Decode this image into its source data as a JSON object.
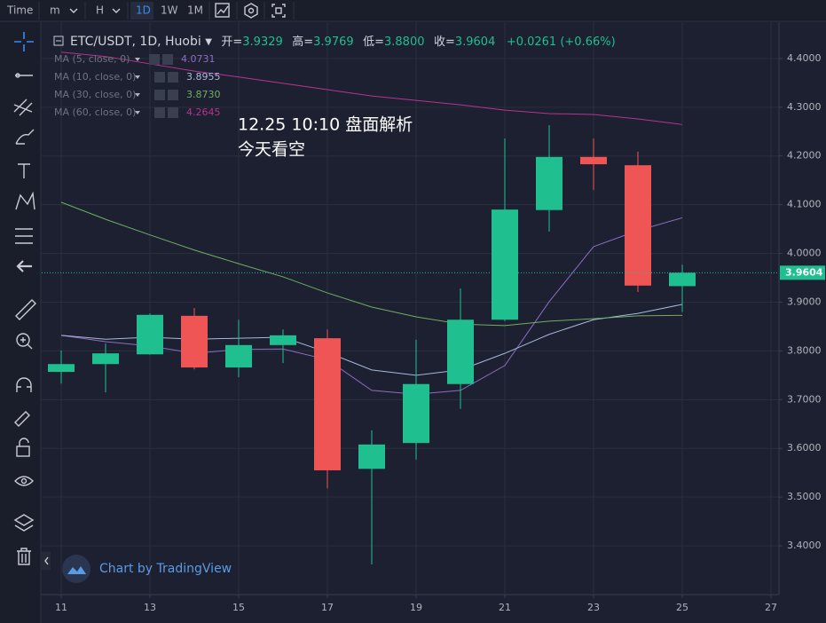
{
  "toolbar": {
    "time": "Time",
    "intervals": [
      "m",
      "H",
      "1D",
      "1W",
      "1M"
    ]
  },
  "watermark": "Chart by TradingView",
  "chart_data": {
    "type": "candlestick",
    "title": "ETC/USDT, 1D, Huobi",
    "ohlc_labels": [
      "开=",
      "高=",
      "低=",
      "收="
    ],
    "ohlc_value_labels": [
      "3.9329",
      "3.9769",
      "3.8800",
      "3.9604"
    ],
    "change_label": "+0.0261 (+0.66%)",
    "annotations": [
      "12.25 10:10 盘面解析",
      "今天看空"
    ],
    "up_color": "#1fbf8f",
    "down_color": "#f05555",
    "x": [
      11,
      12,
      13,
      14,
      15,
      16,
      17,
      18,
      19,
      20,
      21,
      22,
      23,
      24,
      25
    ],
    "open": [
      3.757,
      3.773,
      3.793,
      3.872,
      3.766,
      3.812,
      3.826,
      3.558,
      3.611,
      3.732,
      3.864,
      4.089,
      4.198,
      4.181,
      3.9329
    ],
    "high": [
      3.801,
      3.815,
      3.877,
      3.888,
      3.864,
      3.844,
      3.844,
      3.637,
      3.823,
      3.928,
      4.236,
      4.263,
      4.236,
      4.209,
      3.9769
    ],
    "low": [
      3.733,
      3.715,
      3.792,
      3.762,
      3.746,
      3.775,
      3.518,
      3.362,
      3.577,
      3.681,
      3.861,
      4.045,
      4.13,
      3.921,
      3.88
    ],
    "close": [
      3.773,
      3.795,
      3.874,
      3.766,
      3.812,
      3.832,
      3.555,
      3.608,
      3.732,
      3.864,
      4.09,
      4.198,
      4.183,
      3.934,
      3.9604
    ],
    "series": [
      {
        "name": "MA (5, close, 0)",
        "color": "#8e6cc4",
        "value_label": "4.0731",
        "values": [
          3.832,
          3.819,
          3.81,
          3.795,
          3.803,
          3.804,
          3.782,
          3.719,
          3.711,
          3.719,
          3.77,
          3.901,
          4.014,
          4.047,
          4.0731
        ]
      },
      {
        "name": "MA (10, close, 0)",
        "color": "#a8b8dc",
        "value_label": "3.8955",
        "values": [
          3.832,
          3.824,
          3.828,
          3.824,
          3.826,
          3.828,
          3.797,
          3.761,
          3.75,
          3.761,
          3.795,
          3.834,
          3.864,
          3.877,
          3.8955
        ]
      },
      {
        "name": "MA (30, close, 0)",
        "color": "#6fae62",
        "value_label": "3.8730",
        "values": [
          4.105,
          4.07,
          4.038,
          4.007,
          3.979,
          3.952,
          3.919,
          3.89,
          3.87,
          3.855,
          3.852,
          3.861,
          3.866,
          3.872,
          3.873
        ]
      },
      {
        "name": "MA (60, close, 0)",
        "color": "#b8348f",
        "value_label": "4.2645",
        "values": [
          4.413,
          4.404,
          4.389,
          4.374,
          4.362,
          4.349,
          4.336,
          4.323,
          4.314,
          4.305,
          4.294,
          4.287,
          4.285,
          4.276,
          4.2645
        ]
      }
    ],
    "xlim": [
      10.66,
      27.18
    ],
    "xticks": [
      11,
      13,
      15,
      17,
      19,
      21,
      23,
      25,
      27
    ],
    "ylim": [
      3.3,
      4.469
    ],
    "yticks": [
      {
        "value": 3.4,
        "label": "3.4000"
      },
      {
        "value": 3.5,
        "label": "3.5000"
      },
      {
        "value": 3.6,
        "label": "3.6000"
      },
      {
        "value": 3.7,
        "label": "3.7000"
      },
      {
        "value": 3.8,
        "label": "3.8000"
      },
      {
        "value": 3.9,
        "label": "3.9000"
      },
      {
        "value": 4.0,
        "label": "4.0000"
      },
      {
        "value": 4.1,
        "label": "4.1000"
      },
      {
        "value": 4.2,
        "label": "4.2000"
      },
      {
        "value": 4.3,
        "label": "4.3000"
      },
      {
        "value": 4.4,
        "label": "4.4000"
      }
    ],
    "grid": true
  }
}
